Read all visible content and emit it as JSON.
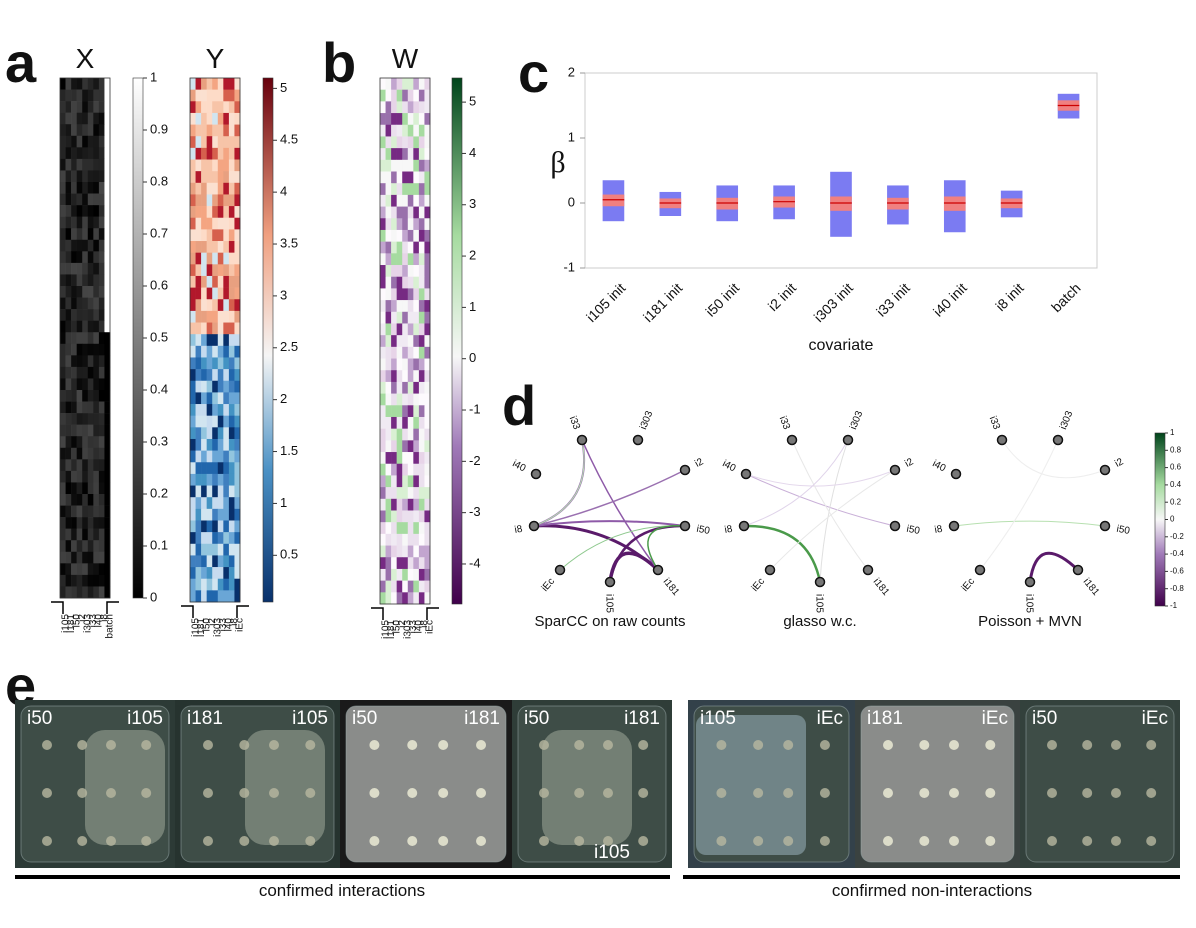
{
  "panel_labels": [
    "a",
    "b",
    "c",
    "d",
    "e"
  ],
  "panel_a": {
    "heatmaps": [
      {
        "title": "X",
        "columns": [
          "i105",
          "i181",
          "i50",
          "i2",
          "i303",
          "i33",
          "i40",
          "i8",
          "batch"
        ],
        "colorbar": {
          "lim": [
            0,
            1
          ],
          "ticks": [
            0,
            0.1,
            0.2,
            0.3,
            0.4,
            0.5,
            0.6,
            0.7,
            0.8,
            0.9,
            1
          ]
        }
      },
      {
        "title": "Y",
        "columns": [
          "i105",
          "i181",
          "i50",
          "i2",
          "i303",
          "i33",
          "i40",
          "i8",
          "iEc"
        ],
        "colorbar": {
          "lim": [
            0.05,
            5.1
          ],
          "ticks": [
            0.5,
            1,
            1.5,
            2,
            2.5,
            3,
            3.5,
            4,
            4.5,
            5
          ]
        }
      }
    ]
  },
  "panel_b": {
    "title": "W",
    "columns": [
      "i105",
      "i181",
      "i50",
      "i2",
      "i303",
      "i33",
      "i40",
      "i8",
      "iEc"
    ],
    "colorbar": {
      "lim": [
        -4.78,
        5.47
      ],
      "ticks": [
        -4,
        -3,
        -2,
        -1,
        0,
        1,
        2,
        3,
        4,
        5
      ]
    }
  },
  "chart_data": {
    "type": "box",
    "ylabel": "β",
    "xlabel": "covariate",
    "categories": [
      "i105 init",
      "i181 init",
      "i50 init",
      "i2 init",
      "i303 init",
      "i33 init",
      "i40 init",
      "i8 init",
      "batch"
    ],
    "low": [
      -0.28,
      -0.2,
      -0.28,
      -0.25,
      -0.52,
      -0.33,
      -0.45,
      -0.22,
      1.3
    ],
    "high": [
      0.35,
      0.17,
      0.27,
      0.27,
      0.48,
      0.27,
      0.35,
      0.19,
      1.68
    ],
    "ci_low": [
      -0.05,
      -0.08,
      -0.1,
      -0.07,
      -0.12,
      -0.1,
      -0.12,
      -0.08,
      1.42
    ],
    "ci_high": [
      0.13,
      0.07,
      0.08,
      0.1,
      0.1,
      0.08,
      0.1,
      0.07,
      1.58
    ],
    "median": [
      0.05,
      0,
      0,
      0.02,
      0,
      0,
      0,
      0,
      1.5
    ],
    "box_color": "#7b7bf2",
    "ci_color": "#f08080",
    "ylim": [
      -1,
      2
    ],
    "yticks": [
      -1,
      0,
      1,
      2
    ]
  },
  "panel_d": {
    "networks": [
      {
        "title": "SparCC on raw counts"
      },
      {
        "title": "glasso w.c."
      },
      {
        "title": "Poisson + MVN"
      }
    ],
    "nodes": [
      "i33",
      "i303",
      "i2",
      "i50",
      "i181",
      "i105",
      "iEc",
      "i8",
      "i40"
    ],
    "colorbar": {
      "lim": [
        -1,
        1
      ],
      "ticks": [
        -1,
        -0.8,
        -0.6,
        -0.4,
        -0.2,
        0,
        0.2,
        0.4,
        0.6,
        0.8,
        1
      ]
    }
  },
  "panel_e": {
    "plates": [
      {
        "labels": [
          "i50",
          "i105"
        ]
      },
      {
        "labels": [
          "i181",
          "i105"
        ]
      },
      {
        "labels": [
          "i50",
          "i181"
        ]
      },
      {
        "labels": [
          "i50",
          "i181",
          "i105"
        ]
      },
      {
        "labels": [
          "i105",
          "iEc"
        ]
      },
      {
        "labels": [
          "i181",
          "iEc"
        ]
      },
      {
        "labels": [
          "i50",
          "iEc"
        ]
      }
    ],
    "captions": [
      "confirmed interactions",
      "confirmed non-interactions"
    ]
  }
}
